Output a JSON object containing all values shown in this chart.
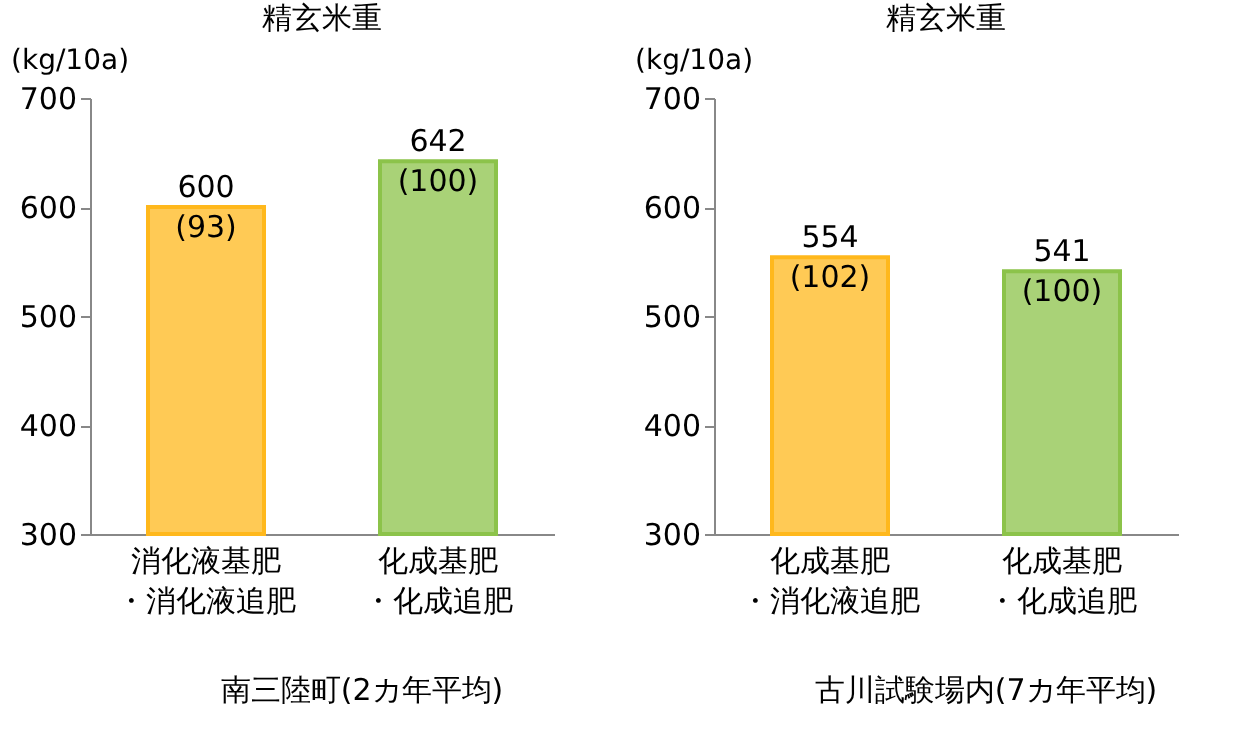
{
  "chart_data": [
    {
      "type": "bar",
      "title": "精玄米重",
      "ylabel": "(kg/10a)",
      "categories": [
        "消化液基肥・消化液追肥",
        "化成基肥・化成追肥"
      ],
      "values": [
        600,
        642
      ],
      "colors": [
        "#ffb81c",
        "#8cc34a"
      ],
      "value_labels": [
        "600\n(93)",
        "642\n(100)"
      ],
      "ylim": [
        300,
        700
      ],
      "yticks": [
        300,
        400,
        500,
        600,
        700
      ],
      "grid": false,
      "annotations": [
        "南三陸町(2カ年平均)"
      ]
    },
    {
      "type": "bar",
      "title": "精玄米重",
      "ylabel": "(kg/10a)",
      "categories": [
        "化成基肥・消化液追肥",
        "化成基肥・化成追肥"
      ],
      "values": [
        554,
        541
      ],
      "colors": [
        "#ffb81c",
        "#8cc34a"
      ],
      "value_labels": [
        "554\n(102)",
        "541\n(100)"
      ],
      "ylim": [
        300,
        700
      ],
      "yticks": [
        300,
        400,
        500,
        600,
        700
      ],
      "grid": false,
      "annotations": [
        "古川試験場内(7カ年平均)"
      ]
    }
  ]
}
